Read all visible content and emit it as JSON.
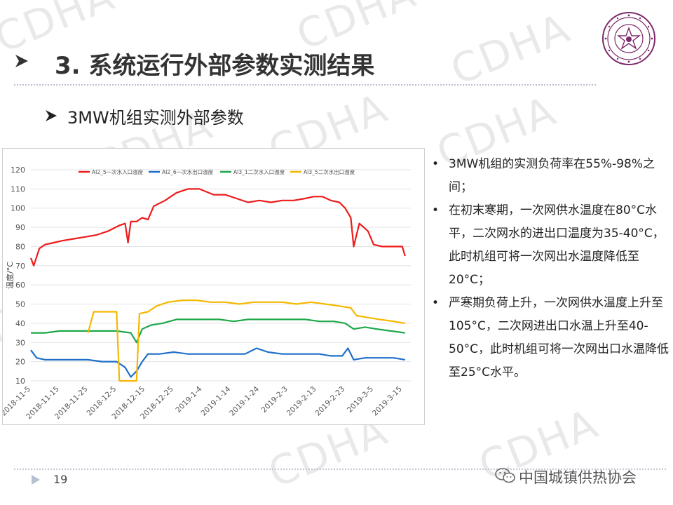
{
  "watermark": "CDHA",
  "slide": {
    "title": "3. 系统运行外部参数实测结果",
    "subtitle": "3MW机组实测外部参数",
    "page_number": "19",
    "brand": "中国城镇供热协会"
  },
  "notes": [
    "3MW机组的实测负荷率在55%-98%之间；",
    "在初末寒期，一次网供水温度在80°C水平，二次网水的进出口温度为35-40°C，此时机组可将一次网出水温度降低至20°C；",
    "严寒期负荷上升，一次网供水温度上升至105°C，二次网进出口水温上升至40-50°C，此时机组可将一次网出口水温降低至25°C水平。"
  ],
  "colors": {
    "red": "#ee1c1c",
    "blue": "#1f6fc8",
    "green": "#1fa84a",
    "yellow": "#f5b800",
    "title_arrow": "#333333"
  },
  "icons": [
    "chevron-right-icon",
    "university-seal-icon",
    "wechat-icon"
  ],
  "chart_data": {
    "type": "line",
    "title": "",
    "xlabel": "",
    "ylabel": "温度/°C",
    "ylim": [
      10,
      120
    ],
    "yticks": [
      10,
      20,
      30,
      40,
      50,
      60,
      70,
      80,
      90,
      100,
      110,
      120
    ],
    "xlim": [
      "2018-11-05",
      "2019-03-18"
    ],
    "xticks": [
      "2018-11-5",
      "2018-11-15",
      "2018-11-25",
      "2018-12-5",
      "2018-12-15",
      "2018-12-25",
      "2019-1-4",
      "2019-1-14",
      "2019-1-24",
      "2019-2-3",
      "2019-2-13",
      "2019-2-23",
      "2019-3-5",
      "2019-3-15"
    ],
    "grid": true,
    "legend_position": "top",
    "series": [
      {
        "name": "AI2_5一次水入口温度",
        "color": "#ee1c1c",
        "points": [
          [
            "2018-11-05",
            74
          ],
          [
            "2018-11-06",
            70
          ],
          [
            "2018-11-08",
            79
          ],
          [
            "2018-11-10",
            81
          ],
          [
            "2018-11-13",
            82
          ],
          [
            "2018-11-16",
            83
          ],
          [
            "2018-11-20",
            84
          ],
          [
            "2018-11-24",
            85
          ],
          [
            "2018-11-28",
            86
          ],
          [
            "2018-12-02",
            88
          ],
          [
            "2018-12-06",
            91
          ],
          [
            "2018-12-08",
            92
          ],
          [
            "2018-12-09",
            82
          ],
          [
            "2018-12-10",
            93
          ],
          [
            "2018-12-12",
            93
          ],
          [
            "2018-12-14",
            95
          ],
          [
            "2018-12-16",
            94
          ],
          [
            "2018-12-18",
            101
          ],
          [
            "2018-12-22",
            104
          ],
          [
            "2018-12-26",
            108
          ],
          [
            "2018-12-30",
            110
          ],
          [
            "2019-01-03",
            110
          ],
          [
            "2019-01-08",
            107
          ],
          [
            "2019-01-12",
            107
          ],
          [
            "2019-01-16",
            105
          ],
          [
            "2019-01-20",
            103
          ],
          [
            "2019-01-24",
            104
          ],
          [
            "2019-01-28",
            103
          ],
          [
            "2019-02-01",
            104
          ],
          [
            "2019-02-05",
            104
          ],
          [
            "2019-02-09",
            105
          ],
          [
            "2019-02-12",
            106
          ],
          [
            "2019-02-15",
            106
          ],
          [
            "2019-02-18",
            104
          ],
          [
            "2019-02-21",
            103
          ],
          [
            "2019-02-23",
            100
          ],
          [
            "2019-02-25",
            95
          ],
          [
            "2019-02-26",
            80
          ],
          [
            "2019-02-28",
            92
          ],
          [
            "2019-03-03",
            88
          ],
          [
            "2019-03-05",
            81
          ],
          [
            "2019-03-08",
            80
          ],
          [
            "2019-03-12",
            80
          ],
          [
            "2019-03-15",
            80
          ],
          [
            "2019-03-16",
            75
          ]
        ]
      },
      {
        "name": "AI2_6一次水出口温度",
        "color": "#1f6fc8",
        "points": [
          [
            "2018-11-05",
            26
          ],
          [
            "2018-11-07",
            22
          ],
          [
            "2018-11-10",
            21
          ],
          [
            "2018-11-15",
            21
          ],
          [
            "2018-11-20",
            21
          ],
          [
            "2018-11-25",
            21
          ],
          [
            "2018-11-30",
            20
          ],
          [
            "2018-12-05",
            20
          ],
          [
            "2018-12-08",
            17
          ],
          [
            "2018-12-10",
            12
          ],
          [
            "2018-12-12",
            15
          ],
          [
            "2018-12-14",
            20
          ],
          [
            "2018-12-16",
            24
          ],
          [
            "2018-12-20",
            24
          ],
          [
            "2018-12-25",
            25
          ],
          [
            "2018-12-30",
            24
          ],
          [
            "2019-01-04",
            24
          ],
          [
            "2019-01-09",
            24
          ],
          [
            "2019-01-14",
            24
          ],
          [
            "2019-01-19",
            24
          ],
          [
            "2019-01-23",
            27
          ],
          [
            "2019-01-27",
            25
          ],
          [
            "2019-02-01",
            24
          ],
          [
            "2019-02-06",
            24
          ],
          [
            "2019-02-10",
            24
          ],
          [
            "2019-02-14",
            24
          ],
          [
            "2019-02-18",
            23
          ],
          [
            "2019-02-22",
            23
          ],
          [
            "2019-02-24",
            27
          ],
          [
            "2019-02-26",
            21
          ],
          [
            "2019-03-02",
            22
          ],
          [
            "2019-03-08",
            22
          ],
          [
            "2019-03-12",
            22
          ],
          [
            "2019-03-16",
            21
          ]
        ]
      },
      {
        "name": "AI3_1二次水入口温度",
        "color": "#1fa84a",
        "points": [
          [
            "2018-11-05",
            35
          ],
          [
            "2018-11-10",
            35
          ],
          [
            "2018-11-15",
            36
          ],
          [
            "2018-11-20",
            36
          ],
          [
            "2018-11-25",
            36
          ],
          [
            "2018-11-30",
            36
          ],
          [
            "2018-12-05",
            36
          ],
          [
            "2018-12-10",
            35
          ],
          [
            "2018-12-12",
            30
          ],
          [
            "2018-12-14",
            37
          ],
          [
            "2018-12-17",
            39
          ],
          [
            "2018-12-21",
            40
          ],
          [
            "2018-12-26",
            42
          ],
          [
            "2018-12-31",
            42
          ],
          [
            "2019-01-05",
            42
          ],
          [
            "2019-01-10",
            42
          ],
          [
            "2019-01-15",
            41
          ],
          [
            "2019-01-20",
            42
          ],
          [
            "2019-01-25",
            42
          ],
          [
            "2019-01-30",
            42
          ],
          [
            "2019-02-04",
            42
          ],
          [
            "2019-02-09",
            42
          ],
          [
            "2019-02-14",
            41
          ],
          [
            "2019-02-19",
            41
          ],
          [
            "2019-02-23",
            40
          ],
          [
            "2019-02-26",
            37
          ],
          [
            "2019-03-02",
            38
          ],
          [
            "2019-03-06",
            37
          ],
          [
            "2019-03-11",
            36
          ],
          [
            "2019-03-16",
            35
          ]
        ]
      },
      {
        "name": "AI3_5二次水出口温度",
        "color": "#f5b800",
        "points": [
          [
            "2018-11-25",
            35
          ],
          [
            "2018-11-27",
            46
          ],
          [
            "2018-11-29",
            46
          ],
          [
            "2018-12-01",
            46
          ],
          [
            "2018-12-03",
            46
          ],
          [
            "2018-12-05",
            46
          ],
          [
            "2018-12-06",
            10
          ],
          [
            "2018-12-12",
            10
          ],
          [
            "2018-12-13",
            45
          ],
          [
            "2018-12-16",
            46
          ],
          [
            "2018-12-19",
            49
          ],
          [
            "2018-12-23",
            51
          ],
          [
            "2018-12-28",
            52
          ],
          [
            "2019-01-02",
            52
          ],
          [
            "2019-01-07",
            51
          ],
          [
            "2019-01-12",
            51
          ],
          [
            "2019-01-17",
            50
          ],
          [
            "2019-01-22",
            51
          ],
          [
            "2019-01-27",
            51
          ],
          [
            "2019-02-01",
            51
          ],
          [
            "2019-02-06",
            50
          ],
          [
            "2019-02-11",
            51
          ],
          [
            "2019-02-16",
            50
          ],
          [
            "2019-02-21",
            49
          ],
          [
            "2019-02-25",
            48
          ],
          [
            "2019-02-27",
            44
          ],
          [
            "2019-03-03",
            43
          ],
          [
            "2019-03-07",
            42
          ],
          [
            "2019-03-12",
            41
          ],
          [
            "2019-03-16",
            40
          ]
        ]
      }
    ]
  }
}
